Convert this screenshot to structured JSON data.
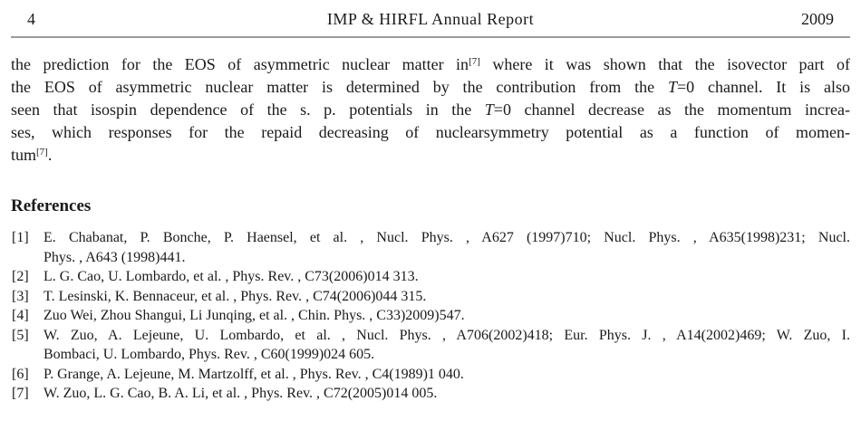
{
  "header": {
    "page_number": "4",
    "title": "IMP & HIRFL Annual Report",
    "year": "2009"
  },
  "paragraph": {
    "lines": [
      {
        "justify": true,
        "segments": [
          {
            "t": "the prediction for the EOS of asymmetric nuclear matter in"
          },
          {
            "sup": "[7]"
          },
          {
            "t": " where it was shown that the isovector part of"
          }
        ]
      },
      {
        "justify": true,
        "segments": [
          {
            "t": "the EOS of asymmetric nuclear matter is determined by the contribution from the "
          },
          {
            "i": "T"
          },
          {
            "t": "=0 channel. It is also"
          }
        ]
      },
      {
        "justify": true,
        "segments": [
          {
            "t": "seen that isospin dependence of the s. p. potentials in the "
          },
          {
            "i": "T"
          },
          {
            "t": "=0 channel decrease as the momentum increa-"
          }
        ]
      },
      {
        "justify": true,
        "segments": [
          {
            "t": "ses, which responses for the repaid decreasing of nuclearsymmetry potential as a function of momen-"
          }
        ]
      },
      {
        "justify": false,
        "segments": [
          {
            "t": "tum"
          },
          {
            "sup": "[7]"
          },
          {
            "t": "."
          }
        ]
      }
    ]
  },
  "references": {
    "heading": "References",
    "items": [
      {
        "label": "[1]",
        "lines": [
          "E. Chabanat, P. Bonche, P. Haensel, et al. , Nucl. Phys. , A627 (1997)710; Nucl. Phys. , A635(1998)231; Nucl.",
          "Phys. , A643 (1998)441."
        ]
      },
      {
        "label": "[2]",
        "lines": [
          "L. G. Cao, U. Lombardo, et al. , Phys. Rev. , C73(2006)014 313."
        ]
      },
      {
        "label": "[3]",
        "lines": [
          "T. Lesinski, K. Bennaceur, et al. , Phys. Rev. , C74(2006)044 315."
        ]
      },
      {
        "label": "[4]",
        "lines": [
          "Zuo Wei, Zhou Shangui, Li Junqing, et al. , Chin. Phys. , C33)2009)547."
        ]
      },
      {
        "label": "[5]",
        "lines": [
          "W. Zuo, A. Lejeune, U. Lombardo, et al. , Nucl. Phys. , A706(2002)418; Eur. Phys. J. , A14(2002)469; W. Zuo, I.",
          "Bombaci, U. Lombardo, Phys. Rev. , C60(1999)024 605."
        ]
      },
      {
        "label": "[6]",
        "lines": [
          "P. Grange, A. Lejeune, M. Martzolff, et al. , Phys. Rev. , C4(1989)1 040."
        ]
      },
      {
        "label": "[7]",
        "lines": [
          "W. Zuo, L. G. Cao, B. A. Li, et al. , Phys. Rev. , C72(2005)014 005."
        ]
      }
    ]
  },
  "colors": {
    "text": "#1a1a1a",
    "rule": "#9b9b9b",
    "background": "#ffffff"
  }
}
